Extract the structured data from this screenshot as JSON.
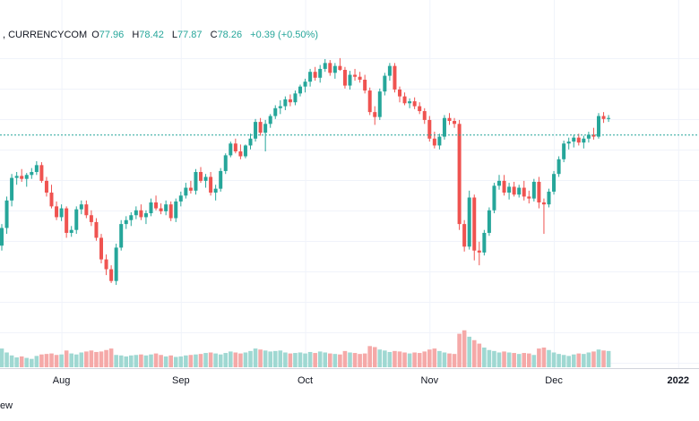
{
  "legend": {
    "prefix": ", CURRENCYCOM",
    "open_label": "O",
    "open": "77.96",
    "high_label": "H",
    "high": "78.42",
    "low_label": "L",
    "low": "77.87",
    "close_label": "C",
    "close": "78.26",
    "change": "+0.39 (+0.50%)"
  },
  "footer": {
    "text": "ew"
  },
  "colors": {
    "up": "#26a69a",
    "down": "#ef5350",
    "vol_up": "#9fd8d2",
    "vol_down": "#f5a9a8",
    "grid": "#f0f3fa",
    "price_line": "#26a69a"
  },
  "chart_data": {
    "type": "candlestick",
    "title": "CURRENCYCOM",
    "x_ticks": [
      {
        "label": "Aug",
        "index": 12
      },
      {
        "label": "Sep",
        "index": 36
      },
      {
        "label": "Oct",
        "index": 61
      },
      {
        "label": "Nov",
        "index": 86
      },
      {
        "label": "Dec",
        "index": 111
      },
      {
        "label": "2022",
        "index": 136,
        "bold": true
      }
    ],
    "price_range": [
      61.0,
      87.0
    ],
    "current_price": 78.26,
    "volume_range": [
      0,
      100
    ],
    "candles": [
      [
        67.0,
        69.2,
        66.5,
        68.8,
        38
      ],
      [
        68.8,
        72.0,
        68.2,
        71.6,
        30
      ],
      [
        71.6,
        74.3,
        71.0,
        73.9,
        24
      ],
      [
        73.9,
        74.5,
        73.2,
        74.1,
        20
      ],
      [
        74.1,
        74.8,
        73.5,
        73.8,
        22
      ],
      [
        73.8,
        74.4,
        73.0,
        74.2,
        19
      ],
      [
        74.2,
        74.9,
        73.8,
        74.5,
        17
      ],
      [
        74.5,
        75.6,
        74.2,
        75.2,
        23
      ],
      [
        75.2,
        75.5,
        73.4,
        73.6,
        26
      ],
      [
        73.6,
        74.0,
        72.0,
        72.4,
        27
      ],
      [
        72.4,
        73.2,
        70.8,
        71.0,
        28
      ],
      [
        71.0,
        71.5,
        69.6,
        69.9,
        25
      ],
      [
        69.9,
        71.2,
        69.5,
        70.8,
        26
      ],
      [
        70.8,
        71.0,
        67.8,
        68.3,
        34
      ],
      [
        68.3,
        69.0,
        67.9,
        68.6,
        28
      ],
      [
        68.6,
        71.0,
        68.2,
        70.7,
        26
      ],
      [
        70.7,
        71.6,
        70.2,
        71.2,
        30
      ],
      [
        71.2,
        71.6,
        69.8,
        70.1,
        32
      ],
      [
        70.1,
        70.6,
        69.0,
        69.4,
        34
      ],
      [
        69.4,
        69.8,
        67.5,
        67.8,
        31
      ],
      [
        67.8,
        68.2,
        65.2,
        65.6,
        32
      ],
      [
        65.6,
        66.1,
        64.0,
        64.6,
        35
      ],
      [
        64.6,
        65.0,
        63.2,
        63.4,
        38
      ],
      [
        63.4,
        67.2,
        63.0,
        66.8,
        25
      ],
      [
        66.8,
        69.6,
        66.5,
        69.2,
        24
      ],
      [
        69.2,
        70.0,
        68.7,
        69.6,
        22
      ],
      [
        69.6,
        70.4,
        69.0,
        70.1,
        24
      ],
      [
        70.1,
        71.0,
        69.7,
        70.6,
        25
      ],
      [
        70.6,
        71.2,
        69.6,
        69.9,
        26
      ],
      [
        69.9,
        70.6,
        69.2,
        70.3,
        24
      ],
      [
        70.3,
        71.8,
        70.0,
        71.4,
        26
      ],
      [
        71.4,
        72.1,
        70.6,
        70.8,
        28
      ],
      [
        70.8,
        71.3,
        70.2,
        70.5,
        25
      ],
      [
        70.5,
        71.6,
        70.1,
        71.2,
        22
      ],
      [
        71.2,
        71.5,
        69.5,
        69.8,
        24
      ],
      [
        69.8,
        71.8,
        69.4,
        71.5,
        21
      ],
      [
        71.5,
        72.5,
        71.0,
        72.1,
        22
      ],
      [
        72.1,
        73.4,
        71.8,
        72.9,
        24
      ],
      [
        72.9,
        73.6,
        72.3,
        72.6,
        25
      ],
      [
        72.6,
        74.8,
        72.2,
        74.5,
        26
      ],
      [
        74.5,
        75.0,
        73.4,
        73.6,
        27
      ],
      [
        73.6,
        74.3,
        72.9,
        74.0,
        29
      ],
      [
        74.0,
        74.5,
        72.1,
        72.4,
        30
      ],
      [
        72.4,
        73.2,
        71.6,
        72.8,
        28
      ],
      [
        72.8,
        74.9,
        72.5,
        74.6,
        26
      ],
      [
        74.6,
        76.4,
        74.3,
        76.2,
        29
      ],
      [
        76.2,
        77.6,
        76.0,
        77.4,
        32
      ],
      [
        77.4,
        77.9,
        76.4,
        76.6,
        30
      ],
      [
        76.6,
        77.3,
        75.8,
        76.1,
        28
      ],
      [
        76.1,
        77.3,
        75.9,
        77.2,
        30
      ],
      [
        77.2,
        78.4,
        76.8,
        77.9,
        33
      ],
      [
        77.9,
        79.9,
        77.6,
        79.6,
        38
      ],
      [
        79.6,
        80.0,
        78.2,
        78.5,
        36
      ],
      [
        78.5,
        79.8,
        76.6,
        79.4,
        34
      ],
      [
        79.4,
        80.4,
        79.0,
        80.2,
        32
      ],
      [
        80.2,
        81.3,
        79.9,
        81.0,
        33
      ],
      [
        81.0,
        81.8,
        80.4,
        81.2,
        34
      ],
      [
        81.2,
        82.2,
        80.8,
        81.9,
        30
      ],
      [
        81.9,
        82.4,
        81.2,
        81.6,
        28
      ],
      [
        81.6,
        82.8,
        81.3,
        82.5,
        29
      ],
      [
        82.5,
        83.4,
        82.2,
        83.2,
        30
      ],
      [
        83.2,
        84.0,
        82.6,
        83.7,
        28
      ],
      [
        83.7,
        85.0,
        83.2,
        84.7,
        31
      ],
      [
        84.7,
        85.2,
        83.8,
        84.1,
        29
      ],
      [
        84.1,
        85.4,
        83.6,
        85.0,
        32
      ],
      [
        85.0,
        86.0,
        84.7,
        85.6,
        30
      ],
      [
        85.6,
        85.9,
        84.3,
        84.6,
        28
      ],
      [
        84.6,
        85.6,
        84.0,
        85.3,
        27
      ],
      [
        85.3,
        86.1,
        84.8,
        84.9,
        26
      ],
      [
        84.9,
        85.2,
        83.0,
        83.3,
        33
      ],
      [
        83.3,
        84.8,
        82.9,
        84.4,
        30
      ],
      [
        84.4,
        85.0,
        83.8,
        84.2,
        29
      ],
      [
        84.2,
        84.7,
        83.6,
        83.9,
        27
      ],
      [
        83.9,
        84.4,
        82.5,
        82.8,
        28
      ],
      [
        82.8,
        83.1,
        80.3,
        80.6,
        43
      ],
      [
        80.6,
        81.2,
        79.3,
        80.1,
        41
      ],
      [
        80.1,
        83.0,
        79.8,
        82.7,
        36
      ],
      [
        82.7,
        84.6,
        82.3,
        84.3,
        34
      ],
      [
        84.3,
        85.6,
        83.8,
        85.3,
        31
      ],
      [
        85.3,
        85.6,
        82.6,
        82.9,
        33
      ],
      [
        82.9,
        83.2,
        81.6,
        82.2,
        32
      ],
      [
        82.2,
        82.6,
        81.3,
        81.5,
        30
      ],
      [
        81.5,
        82.0,
        81.0,
        81.7,
        28
      ],
      [
        81.7,
        82.1,
        80.9,
        81.2,
        30
      ],
      [
        81.2,
        81.6,
        80.4,
        80.7,
        29
      ],
      [
        80.7,
        81.0,
        79.4,
        79.8,
        32
      ],
      [
        79.8,
        80.2,
        77.6,
        77.9,
        36
      ],
      [
        77.9,
        78.6,
        76.9,
        77.2,
        38
      ],
      [
        77.2,
        78.4,
        76.8,
        78.1,
        33
      ],
      [
        78.1,
        80.3,
        77.8,
        80.0,
        30
      ],
      [
        80.0,
        80.5,
        79.3,
        79.7,
        28
      ],
      [
        79.7,
        80.0,
        79.0,
        79.4,
        27
      ],
      [
        79.4,
        79.8,
        68.6,
        69.2,
        68
      ],
      [
        69.2,
        69.6,
        66.4,
        66.9,
        75
      ],
      [
        66.9,
        72.6,
        66.6,
        71.9,
        62
      ],
      [
        71.9,
        72.2,
        65.5,
        66.5,
        55
      ],
      [
        66.5,
        67.4,
        65.0,
        66.3,
        48
      ],
      [
        66.3,
        68.6,
        66.0,
        68.3,
        40
      ],
      [
        68.3,
        70.9,
        68.0,
        70.6,
        35
      ],
      [
        70.6,
        73.4,
        70.3,
        73.1,
        33
      ],
      [
        73.1,
        74.2,
        72.7,
        73.6,
        30
      ],
      [
        73.6,
        74.2,
        72.1,
        72.4,
        32
      ],
      [
        72.4,
        73.4,
        71.7,
        73.0,
        30
      ],
      [
        73.0,
        73.5,
        72.0,
        72.2,
        29
      ],
      [
        72.2,
        73.2,
        71.9,
        72.9,
        27
      ],
      [
        72.9,
        73.6,
        71.6,
        72.0,
        29
      ],
      [
        72.0,
        72.6,
        71.3,
        71.8,
        28
      ],
      [
        71.8,
        73.8,
        71.5,
        73.5,
        25
      ],
      [
        73.5,
        74.0,
        70.8,
        71.4,
        38
      ],
      [
        71.4,
        71.8,
        68.2,
        71.2,
        40
      ],
      [
        71.2,
        72.8,
        70.9,
        72.5,
        35
      ],
      [
        72.5,
        74.6,
        72.2,
        74.3,
        30
      ],
      [
        74.3,
        76.1,
        74.0,
        75.8,
        27
      ],
      [
        75.8,
        77.7,
        75.5,
        77.4,
        25
      ],
      [
        77.4,
        78.0,
        76.8,
        77.6,
        23
      ],
      [
        77.6,
        78.3,
        77.0,
        78.0,
        26
      ],
      [
        78.0,
        78.4,
        77.2,
        77.5,
        28
      ],
      [
        77.5,
        78.2,
        76.9,
        77.9,
        27
      ],
      [
        77.9,
        78.6,
        77.5,
        78.3,
        30
      ],
      [
        78.3,
        79.0,
        77.8,
        78.1,
        32
      ],
      [
        78.1,
        80.5,
        77.9,
        80.2,
        36
      ],
      [
        80.2,
        80.6,
        79.5,
        79.9,
        34
      ],
      [
        79.9,
        80.3,
        79.6,
        80.0,
        33
      ]
    ]
  }
}
